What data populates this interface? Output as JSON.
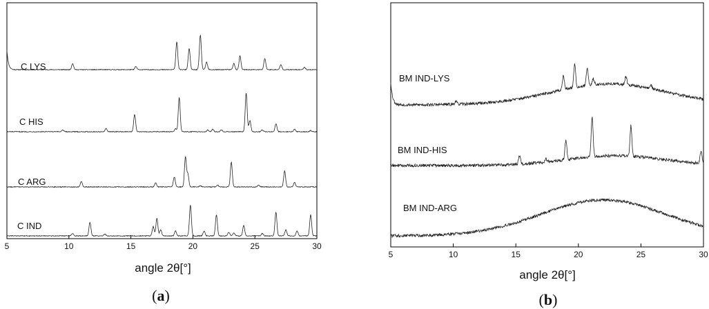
{
  "figure": {
    "panel_a_label": {
      "open": "(",
      "letter": "a",
      "close": ")"
    },
    "panel_b_label": {
      "open": "(",
      "letter": "b",
      "close": ")"
    }
  },
  "chart_data": [
    {
      "type": "line",
      "panel": "a",
      "xlabel": "angle 2θ[°]",
      "xlim": [
        5,
        30
      ],
      "xticks": [
        5,
        10,
        15,
        20,
        25,
        30
      ],
      "y_ticks_shown": false,
      "grid": false,
      "line_color": "#222222",
      "series": [
        {
          "name": "C LYS",
          "baseline": 1.0,
          "start_feature": {
            "height": 3.2,
            "width": 0.12
          },
          "peaks": [
            [
              10.3,
              1.0
            ],
            [
              15.4,
              0.5
            ],
            [
              18.7,
              4.5
            ],
            [
              19.7,
              3.4
            ],
            [
              20.6,
              5.6
            ],
            [
              21.1,
              1.2
            ],
            [
              23.3,
              1.0
            ],
            [
              23.8,
              2.2
            ],
            [
              25.8,
              1.8
            ],
            [
              27.1,
              0.8
            ],
            [
              29.0,
              0.4
            ]
          ]
        },
        {
          "name": "C HIS",
          "baseline": 0.95,
          "peaks": [
            [
              9.5,
              0.3
            ],
            [
              13.0,
              0.5
            ],
            [
              15.3,
              2.8
            ],
            [
              18.6,
              0.5
            ],
            [
              18.9,
              5.5
            ],
            [
              21.2,
              0.3
            ],
            [
              21.6,
              0.4
            ],
            [
              22.3,
              0.3
            ],
            [
              24.3,
              6.2
            ],
            [
              24.6,
              1.8
            ],
            [
              25.6,
              0.3
            ],
            [
              26.7,
              1.3
            ],
            [
              28.2,
              0.4
            ],
            [
              29.5,
              0.2
            ]
          ]
        },
        {
          "name": "C ARG",
          "baseline": 1.0,
          "peaks": [
            [
              11.0,
              0.9
            ],
            [
              17.0,
              0.7
            ],
            [
              18.5,
              1.6
            ],
            [
              19.4,
              4.8
            ],
            [
              19.6,
              2.0
            ],
            [
              20.6,
              0.2
            ],
            [
              22.0,
              0.3
            ],
            [
              23.1,
              4.0
            ],
            [
              25.3,
              0.3
            ],
            [
              27.4,
              2.6
            ],
            [
              28.2,
              0.7
            ]
          ]
        },
        {
          "name": "C IND",
          "baseline": 1.0,
          "peaks": [
            [
              10.3,
              0.4
            ],
            [
              11.7,
              2.2
            ],
            [
              12.9,
              0.3
            ],
            [
              16.8,
              1.5
            ],
            [
              17.1,
              2.8
            ],
            [
              17.4,
              1.0
            ],
            [
              18.6,
              0.8
            ],
            [
              19.8,
              5.0
            ],
            [
              20.9,
              0.8
            ],
            [
              21.9,
              3.4
            ],
            [
              22.9,
              0.6
            ],
            [
              23.3,
              0.5
            ],
            [
              24.1,
              1.7
            ],
            [
              25.6,
              0.4
            ],
            [
              26.7,
              3.8
            ],
            [
              27.5,
              1.0
            ],
            [
              28.4,
              0.8
            ],
            [
              29.5,
              3.4
            ]
          ]
        }
      ]
    },
    {
      "type": "line",
      "panel": "b",
      "xlabel": "angle 2θ[°]",
      "xlim": [
        5,
        30
      ],
      "xticks": [
        5,
        10,
        15,
        20,
        25,
        30
      ],
      "y_ticks_shown": false,
      "grid": false,
      "line_color": "#222222",
      "series": [
        {
          "name": "BM IND-LYS",
          "baseline": 0.9,
          "hump": {
            "center": 22.5,
            "height": 3.2,
            "width": 6.5
          },
          "start_feature": {
            "height": 3.5,
            "width": 0.15
          },
          "peaks": [
            [
              10.2,
              0.5
            ],
            [
              18.8,
              2.2
            ],
            [
              19.7,
              3.6
            ],
            [
              20.7,
              2.6
            ],
            [
              21.2,
              0.9
            ],
            [
              23.8,
              1.3
            ],
            [
              25.8,
              0.6
            ]
          ]
        },
        {
          "name": "BM IND-HIS",
          "baseline": 0.4,
          "hump": {
            "center": 23.0,
            "height": 1.5,
            "width": 5.5
          },
          "peaks": [
            [
              15.3,
              1.3
            ],
            [
              17.4,
              0.5
            ],
            [
              19.0,
              3.0
            ],
            [
              21.1,
              6.0
            ],
            [
              24.2,
              4.7
            ],
            [
              29.8,
              1.8
            ]
          ]
        },
        {
          "name": "BM IND-ARG",
          "baseline": 0.1,
          "hump": {
            "center": 22.0,
            "height": 5.5,
            "width": 7.0
          },
          "peaks": []
        }
      ]
    }
  ]
}
